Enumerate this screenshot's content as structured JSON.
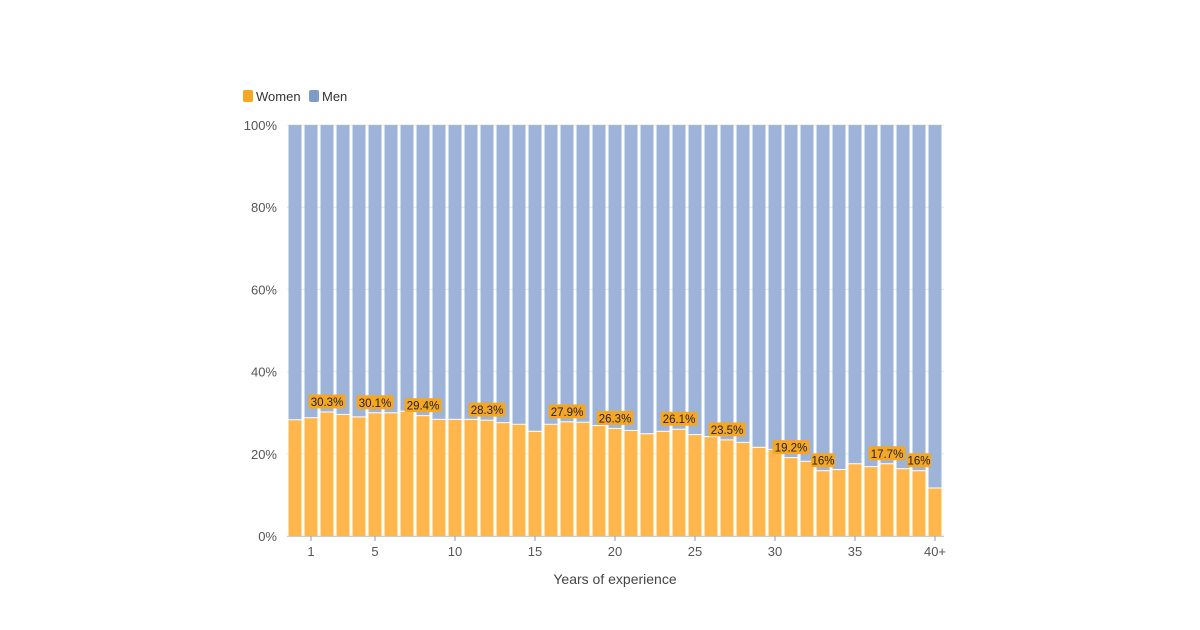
{
  "chart_data": {
    "type": "bar",
    "stacked": true,
    "normalized_percent": true,
    "xlabel": "Years of experience",
    "ylabel": "",
    "ylim": [
      0,
      100
    ],
    "y_ticks": [
      "0%",
      "20%",
      "40%",
      "60%",
      "80%",
      "100%"
    ],
    "x_tick_labels": [
      "1",
      "5",
      "10",
      "15",
      "20",
      "25",
      "30",
      "35",
      "40+"
    ],
    "categories": [
      "0",
      "1",
      "2",
      "3",
      "4",
      "5",
      "6",
      "7",
      "8",
      "9",
      "10",
      "11",
      "12",
      "13",
      "14",
      "15",
      "16",
      "17",
      "18",
      "19",
      "20",
      "21",
      "22",
      "23",
      "24",
      "25",
      "26",
      "27",
      "28",
      "29",
      "30",
      "31",
      "32",
      "33",
      "34",
      "35",
      "36",
      "37",
      "38",
      "39",
      "40+"
    ],
    "legend_position": "top-left",
    "grid": true,
    "series": [
      {
        "name": "Women",
        "color": "#FFB74D",
        "values": [
          28.4,
          28.9,
          30.3,
          29.7,
          29.1,
          30.1,
          30.1,
          30.5,
          29.4,
          28.5,
          28.5,
          28.5,
          28.3,
          27.7,
          27.3,
          25.6,
          27.3,
          27.9,
          27.8,
          27.0,
          26.3,
          25.8,
          25.0,
          25.6,
          26.1,
          24.8,
          24.3,
          23.5,
          22.9,
          21.7,
          21.2,
          19.2,
          18.3,
          16,
          16.3,
          17.7,
          17.0,
          17.7,
          16.5,
          16,
          11.8
        ]
      },
      {
        "name": "Men",
        "color": "#9DB4D8"
      }
    ],
    "data_labels": [
      {
        "category": "2",
        "text": "30.3%"
      },
      {
        "category": "5",
        "text": "30.1%"
      },
      {
        "category": "8",
        "text": "29.4%"
      },
      {
        "category": "12",
        "text": "28.3%"
      },
      {
        "category": "17",
        "text": "27.9%"
      },
      {
        "category": "20",
        "text": "26.3%"
      },
      {
        "category": "24",
        "text": "26.1%"
      },
      {
        "category": "27",
        "text": "23.5%"
      },
      {
        "category": "31",
        "text": "19.2%"
      },
      {
        "category": "33",
        "text": "16%"
      },
      {
        "category": "37",
        "text": "17.7%"
      },
      {
        "category": "39",
        "text": "16%"
      }
    ],
    "label_color": "#F5A623"
  }
}
